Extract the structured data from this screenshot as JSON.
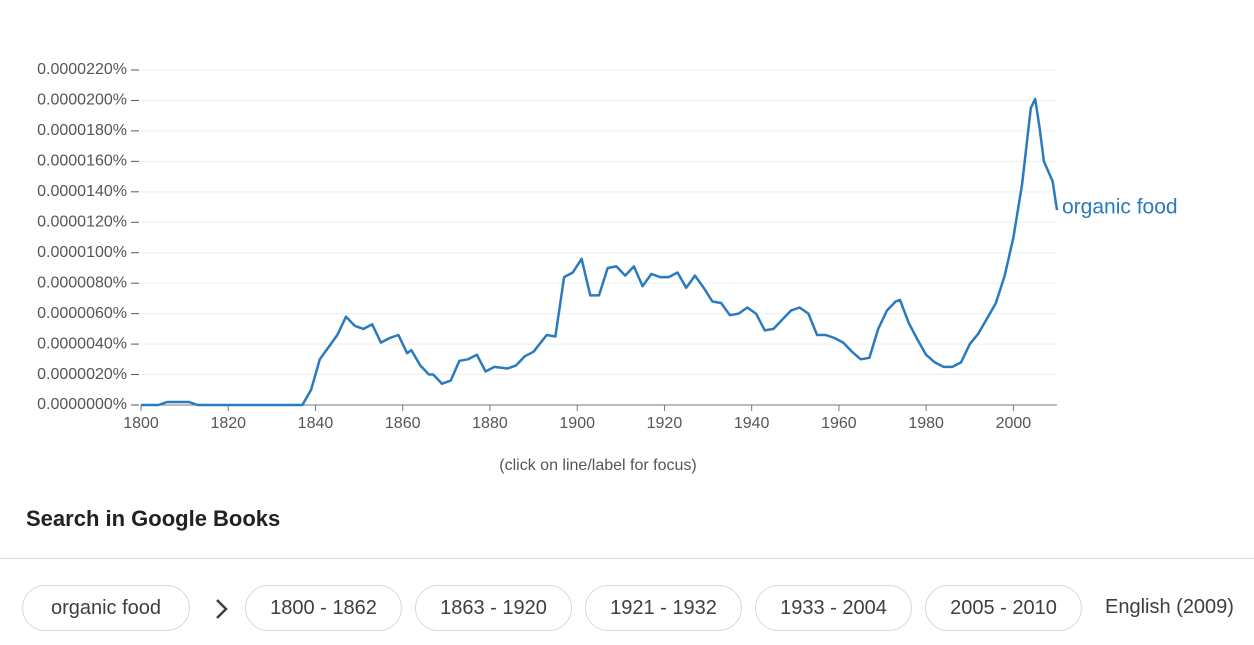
{
  "chart_data": {
    "type": "line",
    "x": [
      1800,
      1804,
      1806,
      1811,
      1813,
      1820,
      1830,
      1837,
      1839,
      1841,
      1843,
      1845,
      1847,
      1849,
      1851,
      1853,
      1855,
      1857,
      1859,
      1861,
      1862,
      1864,
      1866,
      1867,
      1869,
      1871,
      1873,
      1875,
      1877,
      1879,
      1881,
      1884,
      1886,
      1888,
      1890,
      1893,
      1895,
      1897,
      1899,
      1901,
      1903,
      1905,
      1907,
      1909,
      1911,
      1913,
      1915,
      1917,
      1919,
      1921,
      1923,
      1925,
      1927,
      1929,
      1931,
      1933,
      1935,
      1937,
      1939,
      1941,
      1943,
      1945,
      1947,
      1949,
      1951,
      1953,
      1955,
      1957,
      1959,
      1961,
      1963,
      1965,
      1967,
      1969,
      1971,
      1973,
      1974,
      1976,
      1978,
      1980,
      1982,
      1984,
      1986,
      1988,
      1990,
      1992,
      1994,
      1996,
      1998,
      2000,
      2002,
      2004,
      2005,
      2006,
      2007,
      2009,
      2010
    ],
    "series": [
      {
        "name": "organic food",
        "color": "#2a7abf",
        "values": [
          0,
          0,
          2e-07,
          2e-07,
          0,
          0,
          0,
          0,
          1e-06,
          3e-06,
          3.8e-06,
          4.6e-06,
          5.8e-06,
          5.2e-06,
          5e-06,
          5.3e-06,
          4.1e-06,
          4.4e-06,
          4.6e-06,
          3.4e-06,
          3.6e-06,
          2.6e-06,
          2e-06,
          2e-06,
          1.4e-06,
          1.6e-06,
          2.9e-06,
          3e-06,
          3.3e-06,
          2.2e-06,
          2.5e-06,
          2.4e-06,
          2.6e-06,
          3.2e-06,
          3.5e-06,
          4.6e-06,
          4.5e-06,
          8.4e-06,
          8.7e-06,
          9.6e-06,
          7.2e-06,
          7.2e-06,
          9e-06,
          9.1e-06,
          8.5e-06,
          9.1e-06,
          7.8e-06,
          8.6e-06,
          8.4e-06,
          8.4e-06,
          8.7e-06,
          7.7e-06,
          8.5e-06,
          7.7e-06,
          6.8e-06,
          6.7e-06,
          5.9e-06,
          6e-06,
          6.4e-06,
          6e-06,
          4.9e-06,
          5e-06,
          5.6e-06,
          6.2e-06,
          6.4e-06,
          6e-06,
          4.6e-06,
          4.6e-06,
          4.4e-06,
          4.1e-06,
          3.5e-06,
          3e-06,
          3.1e-06,
          5e-06,
          6.2e-06,
          6.8e-06,
          6.9e-06,
          5.4e-06,
          4.3e-06,
          3.3e-06,
          2.8e-06,
          2.5e-06,
          2.5e-06,
          2.8e-06,
          4e-06,
          4.7e-06,
          5.7e-06,
          6.7e-06,
          8.5e-06,
          1.1e-05,
          1.45e-05,
          1.95e-05,
          2.01e-05,
          1.82e-05,
          1.6e-05,
          1.47e-05,
          1.28e-05
        ]
      }
    ],
    "xlim": [
      1800,
      2010
    ],
    "xticks": [
      1800,
      1820,
      1840,
      1860,
      1880,
      1900,
      1920,
      1940,
      1960,
      1980,
      2000
    ],
    "ylim": [
      0,
      2.2e-05
    ],
    "yticks": [
      {
        "value": 0,
        "label": "0.0000000%"
      },
      {
        "value": 2e-06,
        "label": "0.0000020%"
      },
      {
        "value": 4e-06,
        "label": "0.0000040%"
      },
      {
        "value": 6e-06,
        "label": "0.0000060%"
      },
      {
        "value": 8e-06,
        "label": "0.0000080%"
      },
      {
        "value": 1e-05,
        "label": "0.0000100%"
      },
      {
        "value": 1.2e-05,
        "label": "0.0000120%"
      },
      {
        "value": 1.4e-05,
        "label": "0.0000140%"
      },
      {
        "value": 1.6e-05,
        "label": "0.0000160%"
      },
      {
        "value": 1.8e-05,
        "label": "0.0000180%"
      },
      {
        "value": 2e-05,
        "label": "0.0000200%"
      },
      {
        "value": 2.2e-05,
        "label": "0.0000220%"
      }
    ],
    "grid": true,
    "note": "(click on line/label for focus)"
  },
  "search": {
    "title": "Search in Google Books",
    "query": "organic food",
    "ranges": [
      "1800 - 1862",
      "1863 - 1920",
      "1921 - 1932",
      "1933 - 2004",
      "2005 - 2010"
    ],
    "corpus": "English (2009)"
  }
}
